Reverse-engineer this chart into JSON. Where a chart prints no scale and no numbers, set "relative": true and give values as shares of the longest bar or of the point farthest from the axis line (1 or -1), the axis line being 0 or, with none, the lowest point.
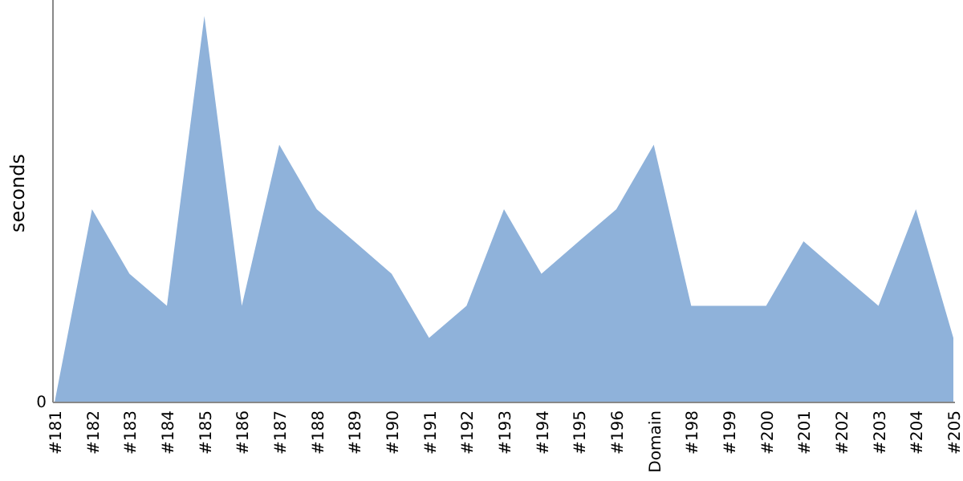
{
  "chart_data": {
    "type": "area",
    "relative": true,
    "ylabel": "seconds",
    "annotations": [
      "0"
    ],
    "categories": [
      "#181",
      "#182",
      "#183",
      "#184",
      "#185",
      "#186",
      "#187",
      "#188",
      "#189",
      "#190",
      "#191",
      "#192",
      "#193",
      "#194",
      "#195",
      "#196",
      "Domain",
      "#198",
      "#199",
      "#200",
      "#201",
      "#202",
      "#203",
      "#204",
      "#205"
    ],
    "series": [
      {
        "color": "#8fb2da",
        "values": [
          0,
          0.5,
          0.333,
          0.25,
          1,
          0.25,
          0.667,
          0.5,
          0.417,
          0.333,
          0.167,
          0.25,
          0.5,
          0.333,
          0.417,
          0.5,
          0.667,
          0.25,
          0.25,
          0.25,
          0.417,
          0.333,
          0.25,
          0.5,
          0.167
        ]
      }
    ]
  }
}
